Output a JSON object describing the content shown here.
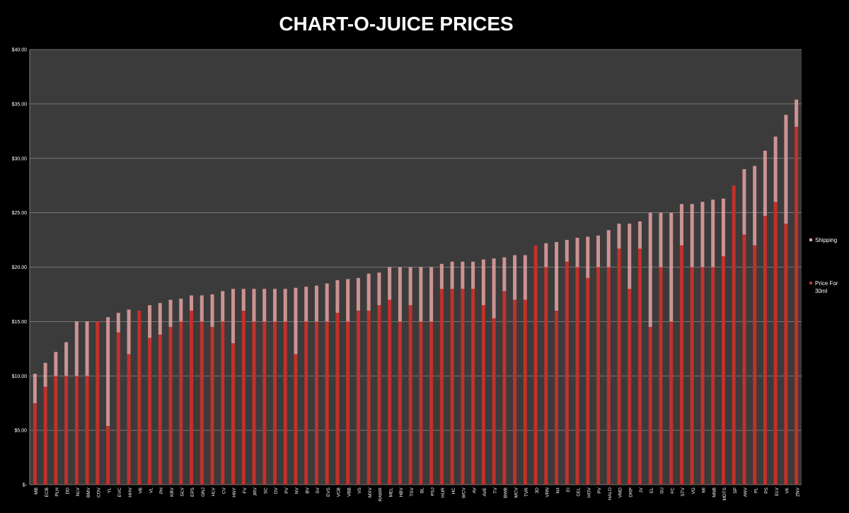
{
  "chart_data": {
    "type": "bar",
    "stacked": true,
    "title": "CHART-O-JUICE PRICES",
    "ylim": [
      0,
      40
    ],
    "yticks": [
      0,
      5,
      10,
      15,
      20,
      25,
      30,
      35,
      40
    ],
    "ytick_labels": [
      "$-",
      "$5.00",
      "$10.00",
      "$15.00",
      "$20.00",
      "$25.00",
      "$30.00",
      "$35.00",
      "$40.00"
    ],
    "grid": true,
    "legend_position": "right",
    "categories": [
      "MB",
      "ECB",
      "PLH",
      "DD",
      "NLV",
      "BMV",
      "COV",
      "YL",
      "EVC",
      "HHV",
      "VB",
      "VL",
      "PH",
      "KBV",
      "GLV",
      "EPS",
      "GNJ",
      "HLV",
      "CV",
      "HNY",
      "FV",
      "JRV",
      "SC",
      "DV",
      "PV",
      "NV",
      "BV",
      "SV",
      "EVS",
      "VCB",
      "VBB",
      "VS",
      "MXV",
      "RAWR",
      "MEL",
      "HBV",
      "TSV",
      "BL",
      "PSJ",
      "HUR",
      "HC",
      "WCV",
      "AV",
      "AVE",
      "TV",
      "BWB",
      "MCV",
      "TVR",
      "3D",
      "VRN",
      "N4",
      "EI",
      "CEL",
      "HOV",
      "PV",
      "HALO",
      "VMD",
      "DRP",
      "JV",
      "EL",
      "SU",
      "FC",
      "STV",
      "VG",
      "MI",
      "NNB",
      "MDTS",
      "SP",
      "ANV",
      "PL",
      "PS",
      "ELV",
      "VK",
      "ZNV"
    ],
    "series": [
      {
        "name": "Price For 30ml",
        "color": "#c1312b",
        "values": [
          7.5,
          9,
          10,
          10,
          10,
          10,
          15,
          5.4,
          14,
          12,
          16,
          13.5,
          13.8,
          14.5,
          15,
          16,
          15,
          14.5,
          15,
          13,
          16,
          15,
          15,
          15,
          15,
          12,
          15,
          15,
          15,
          15.8,
          15,
          16,
          16,
          16.5,
          17,
          15,
          16.5,
          15,
          15,
          18,
          18,
          18,
          18,
          16.5,
          15.3,
          17.8,
          17,
          17,
          22,
          20,
          16,
          20.5,
          20,
          19,
          20,
          20,
          21.7,
          18,
          21.7,
          14.5,
          20,
          15,
          22,
          20,
          20,
          20,
          21,
          27.5,
          23,
          22,
          24.7,
          26,
          24,
          32.9
        ]
      },
      {
        "name": "Shipping",
        "color": "#e6a3a3",
        "values": [
          2.7,
          2.2,
          2.2,
          3.1,
          5,
          5,
          0,
          10,
          1.8,
          4.1,
          0,
          3,
          2.9,
          2.5,
          2.1,
          1.4,
          2.4,
          3,
          2.8,
          5,
          2,
          3,
          3,
          3,
          3,
          6.1,
          3.2,
          3.3,
          3.5,
          3,
          3.9,
          3,
          3.4,
          3,
          3,
          5,
          3.5,
          5,
          5,
          2.3,
          2.5,
          2.5,
          2.5,
          4.2,
          5.5,
          3.1,
          4.1,
          4.1,
          0,
          2.2,
          6.3,
          2,
          2.7,
          3.8,
          2.9,
          3.4,
          2.3,
          6,
          2.5,
          10.5,
          5,
          10,
          3.8,
          5.8,
          6,
          6.2,
          5.3,
          0,
          6,
          7.3,
          6,
          6,
          10,
          2.5
        ]
      }
    ]
  }
}
